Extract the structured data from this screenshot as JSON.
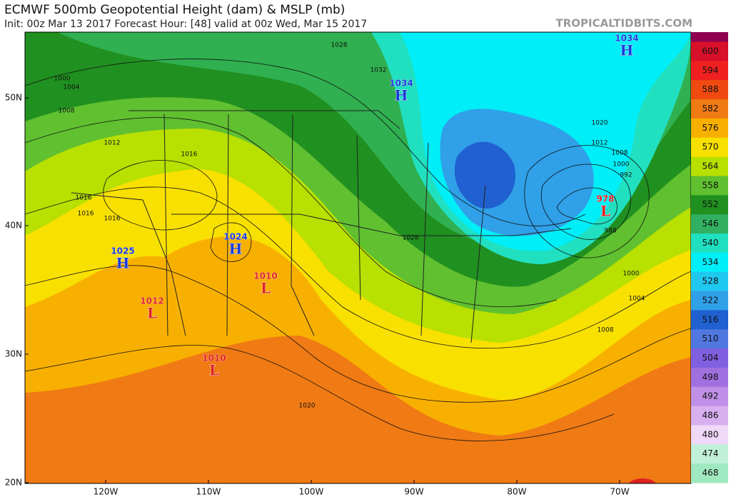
{
  "header": {
    "title": "ECMWF 500mb Geopotential Height (dam) & MSLP (mb)",
    "subtitle": "Init: 00z Mar 13 2017   Forecast Hour: [48]   valid at 00z Wed, Mar 15 2017",
    "watermark": "TROPICALTIDBITS.COM"
  },
  "map": {
    "lat_labels": [
      "50N",
      "40N",
      "30N",
      "20N"
    ],
    "lon_labels": [
      "120W",
      "110W",
      "100W",
      "90W",
      "80W",
      "70W"
    ],
    "centers": [
      {
        "kind": "H",
        "value": "1034"
      },
      {
        "kind": "H",
        "value": "1034"
      },
      {
        "kind": "H",
        "value": "1024"
      },
      {
        "kind": "H",
        "value": "1025"
      },
      {
        "kind": "L",
        "value": "1010"
      },
      {
        "kind": "L",
        "value": "1012"
      },
      {
        "kind": "L",
        "value": "1010"
      },
      {
        "kind": "L",
        "value": "978"
      }
    ],
    "isobar_labels": [
      "1028",
      "1032",
      "1000",
      "1004",
      "1008",
      "1012",
      "1016",
      "1016",
      "1016",
      "1016",
      "1028",
      "1020",
      "1012",
      "1008",
      "1000",
      "992",
      "988",
      "1000",
      "1004",
      "1008",
      "1020"
    ]
  },
  "colorbar": {
    "labels": [
      "600",
      "594",
      "588",
      "582",
      "576",
      "570",
      "564",
      "558",
      "552",
      "546",
      "540",
      "534",
      "528",
      "522",
      "516",
      "510",
      "504",
      "498",
      "492",
      "486",
      "480",
      "474",
      "468"
    ],
    "colors": [
      "#d8102a",
      "#f02020",
      "#f04a10",
      "#f07a14",
      "#f8b000",
      "#f8e000",
      "#b8e000",
      "#60c030",
      "#209020",
      "#30b060",
      "#20e0c0",
      "#00eef8",
      "#20c8f0",
      "#30a0e8",
      "#2060d0",
      "#5078e0",
      "#8060e0",
      "#a070e0",
      "#c090e8",
      "#d8b0f0",
      "#f0d8f8",
      "#c0f0d8",
      "#a0e8c0"
    ]
  }
}
